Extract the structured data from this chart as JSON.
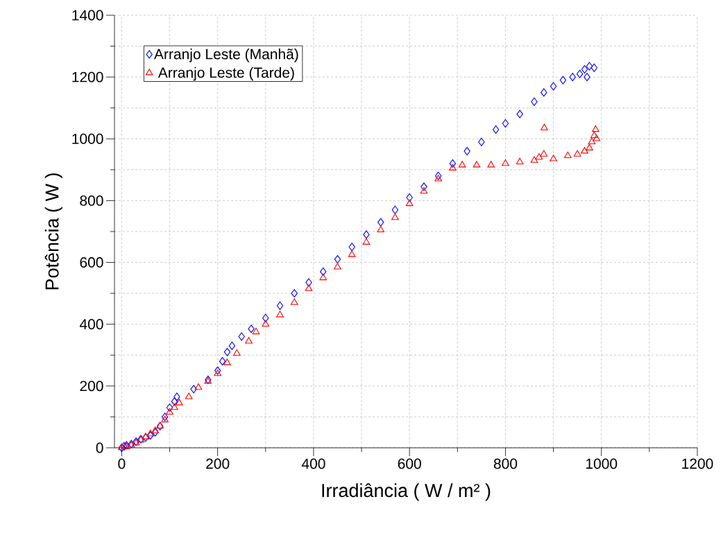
{
  "chart_data": {
    "type": "scatter",
    "xlabel": "Irradiância ( W / m² )",
    "ylabel": "Potência ( W )",
    "xlim": [
      -15,
      1200
    ],
    "ylim": [
      0,
      1400
    ],
    "xticks": [
      0,
      200,
      400,
      600,
      800,
      1000,
      1200
    ],
    "yticks": [
      0,
      200,
      400,
      600,
      800,
      1000,
      1200,
      1400
    ],
    "grid": true,
    "legend": "top left",
    "series": [
      {
        "name": "Arranjo Leste (Manhã)",
        "color": "#0000ff",
        "marker": "diamond",
        "x": [
          0,
          5,
          10,
          20,
          30,
          40,
          50,
          60,
          70,
          80,
          90,
          100,
          110,
          115,
          150,
          180,
          200,
          210,
          220,
          230,
          250,
          270,
          300,
          330,
          360,
          390,
          420,
          450,
          480,
          510,
          540,
          570,
          600,
          630,
          660,
          690,
          720,
          750,
          780,
          800,
          830,
          860,
          880,
          900,
          920,
          940,
          955,
          965,
          970,
          975,
          985
        ],
        "values": [
          0,
          5,
          8,
          12,
          20,
          28,
          33,
          40,
          50,
          70,
          100,
          130,
          150,
          165,
          190,
          220,
          250,
          280,
          310,
          330,
          360,
          385,
          420,
          460,
          500,
          535,
          570,
          610,
          650,
          690,
          730,
          770,
          810,
          845,
          880,
          920,
          960,
          990,
          1030,
          1050,
          1080,
          1120,
          1150,
          1170,
          1190,
          1200,
          1210,
          1225,
          1200,
          1235,
          1230
        ]
      },
      {
        "name": "Arranjo Leste (Tarde)",
        "color": "#ff0000",
        "marker": "triangle",
        "x": [
          0,
          10,
          20,
          30,
          40,
          50,
          60,
          70,
          80,
          90,
          100,
          110,
          120,
          140,
          160,
          180,
          200,
          220,
          240,
          265,
          280,
          300,
          330,
          360,
          390,
          420,
          450,
          480,
          510,
          540,
          570,
          600,
          630,
          660,
          690,
          710,
          740,
          770,
          800,
          830,
          860,
          870,
          880,
          881,
          900,
          930,
          950,
          965,
          975,
          980,
          985,
          988,
          990
        ],
        "values": [
          0,
          3,
          8,
          15,
          25,
          35,
          45,
          55,
          70,
          90,
          115,
          130,
          145,
          165,
          195,
          215,
          240,
          275,
          305,
          345,
          375,
          400,
          430,
          470,
          515,
          550,
          585,
          625,
          665,
          705,
          745,
          790,
          830,
          870,
          905,
          915,
          915,
          915,
          920,
          925,
          930,
          940,
          950,
          1035,
          935,
          945,
          950,
          960,
          970,
          990,
          1010,
          1030,
          1000
        ]
      }
    ]
  }
}
